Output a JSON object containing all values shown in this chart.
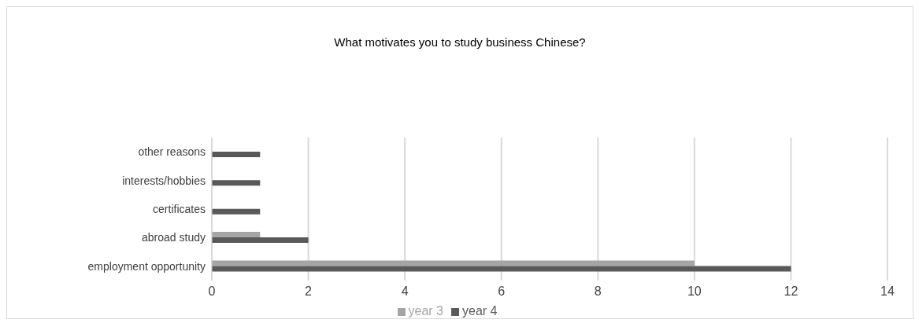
{
  "chart_data": {
    "type": "bar",
    "orientation": "horizontal",
    "title": "What motivates you to study business Chinese?",
    "categories": [
      "other reasons",
      "interests/hobbies",
      "certificates",
      "abroad study",
      "employment opportunity"
    ],
    "series": [
      {
        "name": "year 3",
        "color": "#a5a5a5",
        "values": [
          0,
          0,
          0,
          1,
          10
        ]
      },
      {
        "name": "year 4",
        "color": "#595959",
        "values": [
          1,
          1,
          1,
          2,
          12
        ]
      }
    ],
    "xlim": [
      0,
      14
    ],
    "xticks": [
      0,
      2,
      4,
      6,
      8,
      10,
      12,
      14
    ],
    "grid": "x",
    "legend": "bottom"
  }
}
